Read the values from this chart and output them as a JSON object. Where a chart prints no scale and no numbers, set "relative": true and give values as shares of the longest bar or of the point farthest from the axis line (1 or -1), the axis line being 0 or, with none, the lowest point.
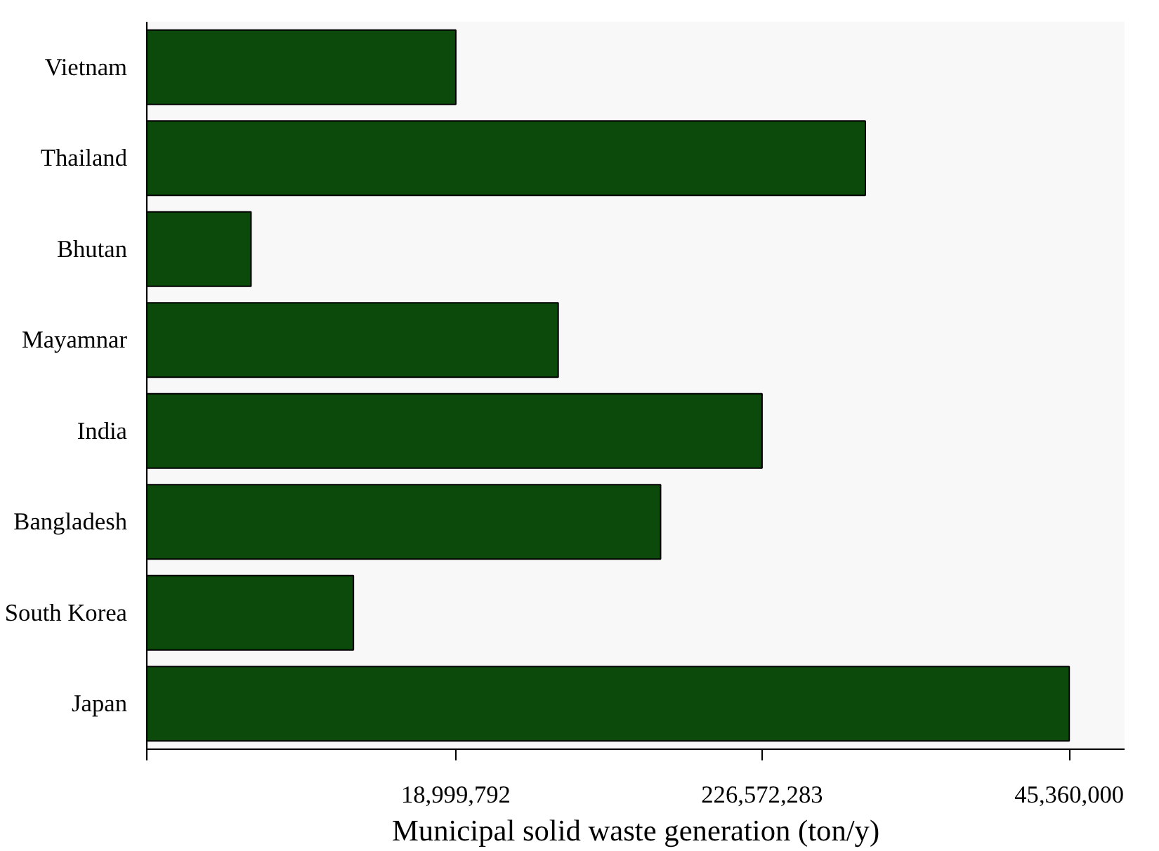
{
  "chart_data": {
    "type": "bar",
    "orientation": "horizontal",
    "relative": true,
    "xlabel": "Municipal solid waste generation (ton/y)",
    "categories": [
      "Vietnam",
      "Thailand",
      "Bhutan",
      "Mayamnar",
      "India",
      "Bangladesh",
      "South Korea",
      "Japan"
    ],
    "values": [
      0.335,
      0.779,
      0.113,
      0.446,
      0.667,
      0.557,
      0.224,
      1.0
    ],
    "color": "#0b4a0b",
    "annotations": [
      {
        "text": "18,999,792",
        "x": 0.335
      },
      {
        "text": "226,572,283",
        "x": 0.667
      },
      {
        "text": "45,360,000",
        "x": 1.0
      }
    ],
    "grid": false
  }
}
